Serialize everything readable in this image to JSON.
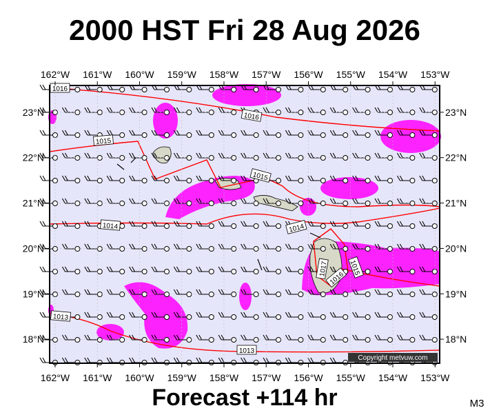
{
  "title": "2000 HST Fri 28 Aug 2026",
  "footer": "Forecast +114 hr",
  "corner_label": "M3",
  "copyright": "Copyright metvuw.com",
  "map": {
    "xlim": [
      -162.13,
      -152.89
    ],
    "ylim": [
      17.47,
      23.59
    ],
    "xticks": [
      {
        "value": -162,
        "label": "162°W"
      },
      {
        "value": -161,
        "label": "161°W"
      },
      {
        "value": -160,
        "label": "160°W"
      },
      {
        "value": -159,
        "label": "159°W"
      },
      {
        "value": -158,
        "label": "158°W"
      },
      {
        "value": -157,
        "label": "157°W"
      },
      {
        "value": -156,
        "label": "156°W"
      },
      {
        "value": -155,
        "label": "155°W"
      },
      {
        "value": -154,
        "label": "154°W"
      },
      {
        "value": -153,
        "label": "153°W"
      }
    ],
    "yticks": [
      {
        "value": 18,
        "label": "18°N"
      },
      {
        "value": 19,
        "label": "19°N"
      },
      {
        "value": 20,
        "label": "20°N"
      },
      {
        "value": 21,
        "label": "21°N"
      },
      {
        "value": 22,
        "label": "22°N"
      },
      {
        "value": 23,
        "label": "23°N"
      }
    ]
  },
  "isobar_labels": [
    "1016",
    "1016",
    "1015",
    "1015",
    "1014",
    "1014",
    "1017",
    "1016",
    "1015",
    "1013",
    "1013"
  ]
}
